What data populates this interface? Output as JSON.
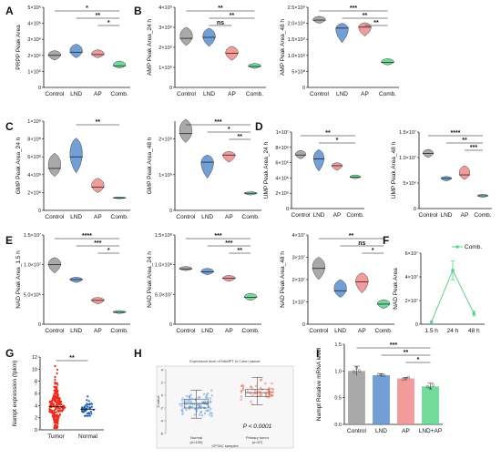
{
  "colors": {
    "control": "#9a9a9a",
    "lnd": "#5a8ed0",
    "ap": "#f08a8a",
    "comb": "#59d38a",
    "tumor": "#ef2b1b",
    "normal": "#1f5fb4",
    "h_normal": "#3a7fd1",
    "h_tumor": "#d9482a"
  },
  "groups4": [
    "Control",
    "LND",
    "AP",
    "Comb."
  ],
  "groupsI": [
    "Control",
    "LND",
    "AP",
    "LND+AP"
  ],
  "chart_data": [
    {
      "id": "A",
      "type": "violin",
      "ylabel": "PRPP Peak Area",
      "ylim": [
        0,
        5000000
      ],
      "ticks": [
        0,
        1000000,
        2000000,
        3000000,
        4000000,
        5000000
      ],
      "tick_labels": [
        "0",
        "1×10⁶",
        "2×10⁶",
        "3×10⁶",
        "4×10⁶",
        "5×10⁶"
      ],
      "categories": [
        "Control",
        "LND",
        "AP",
        "Comb."
      ],
      "values": [
        {
          "min": 1700000,
          "med": 2000000,
          "max": 2300000
        },
        {
          "min": 1850000,
          "med": 2200000,
          "max": 2700000
        },
        {
          "min": 1850000,
          "med": 2050000,
          "max": 2350000
        },
        {
          "min": 1200000,
          "med": 1350000,
          "max": 1650000
        }
      ],
      "sig": [
        {
          "from": 0,
          "to": 3,
          "label": "*"
        },
        {
          "from": 1,
          "to": 3,
          "label": "**"
        },
        {
          "from": 2,
          "to": 3,
          "label": "*"
        }
      ]
    },
    {
      "id": "B1",
      "type": "violin",
      "ylabel": "AMP Peak Area_24 h",
      "ylim": [
        0,
        4000000000
      ],
      "ticks": [
        0,
        1000000000,
        2000000000,
        3000000000,
        4000000000
      ],
      "tick_labels": [
        "0",
        "1×10⁹",
        "2×10⁹",
        "3×10⁹",
        "4×10⁹"
      ],
      "categories": [
        "Control",
        "LND",
        "AP",
        "Comb."
      ],
      "values": [
        {
          "min": 2100000000,
          "med": 2450000000,
          "max": 3000000000
        },
        {
          "min": 2050000000,
          "med": 2500000000,
          "max": 2950000000
        },
        {
          "min": 1350000000,
          "med": 1700000000,
          "max": 2050000000
        },
        {
          "min": 950000000,
          "med": 1050000000,
          "max": 1200000000
        }
      ],
      "sig": [
        {
          "from": 0,
          "to": 3,
          "label": "**"
        },
        {
          "from": 1,
          "to": 3,
          "label": "**"
        },
        {
          "from": 1,
          "to": 2,
          "label": "ns"
        }
      ]
    },
    {
      "id": "B2",
      "type": "violin",
      "ylabel": "AMP Peak Area_48 h",
      "ylim": [
        0,
        2500000000
      ],
      "ticks": [
        0,
        500000000,
        1000000000,
        1500000000,
        2000000000,
        2500000000
      ],
      "tick_labels": [
        "0",
        "5×10⁸",
        "1.0×10⁹",
        "1.5×10⁹",
        "2.0×10⁹",
        "2.5×10⁹"
      ],
      "categories": [
        "Control",
        "LND",
        "AP",
        "Comb."
      ],
      "values": [
        {
          "min": 2000000000,
          "med": 2100000000,
          "max": 2220000000
        },
        {
          "min": 1400000000,
          "med": 1850000000,
          "max": 2000000000
        },
        {
          "min": 1600000000,
          "med": 1880000000,
          "max": 2020000000
        },
        {
          "min": 700000000,
          "med": 780000000,
          "max": 900000000
        }
      ],
      "sig": [
        {
          "from": 0,
          "to": 3,
          "label": "***"
        },
        {
          "from": 1,
          "to": 3,
          "label": "**"
        },
        {
          "from": 2,
          "to": 3,
          "label": "**"
        }
      ]
    },
    {
      "id": "C1",
      "type": "violin",
      "ylabel": "GMP Peak Area_24 h",
      "ylim": [
        0,
        1000000000
      ],
      "ticks": [
        0,
        200000000,
        400000000,
        600000000,
        800000000,
        1000000000
      ],
      "tick_labels": [
        "0",
        "2×10⁸",
        "4×10⁸",
        "6×10⁸",
        "8×10⁸",
        "1×10⁹"
      ],
      "categories": [
        "Control",
        "LND",
        "AP",
        "Comb."
      ],
      "values": [
        {
          "min": 380000000,
          "med": 470000000,
          "max": 640000000
        },
        {
          "min": 420000000,
          "med": 600000000,
          "max": 810000000
        },
        {
          "min": 200000000,
          "med": 260000000,
          "max": 360000000
        },
        {
          "min": 130000000,
          "med": 140000000,
          "max": 150000000
        }
      ],
      "sig": [
        {
          "from": 1,
          "to": 3,
          "label": "**"
        }
      ]
    },
    {
      "id": "C2",
      "type": "violin",
      "ylabel": "GMP Peak Area_48 h",
      "ylim": [
        0,
        2500000000
      ],
      "ticks": [
        0,
        1000000000,
        2000000000
      ],
      "tick_labels": [
        "0",
        "1×10⁹",
        "2×10⁹"
      ],
      "categories": [
        "Control",
        "LND",
        "AP",
        "Comb."
      ],
      "values": [
        {
          "min": 1900000000,
          "med": 2150000000,
          "max": 2550000000
        },
        {
          "min": 900000000,
          "med": 1350000000,
          "max": 1550000000
        },
        {
          "min": 1350000000,
          "med": 1550000000,
          "max": 1650000000
        },
        {
          "min": 430000000,
          "med": 480000000,
          "max": 520000000
        }
      ],
      "sig": [
        {
          "from": 0,
          "to": 3,
          "label": "***"
        },
        {
          "from": 1,
          "to": 3,
          "label": "*"
        },
        {
          "from": 2,
          "to": 3,
          "label": "**"
        }
      ]
    },
    {
      "id": "D1",
      "type": "violin",
      "ylabel": "UMP Peak Area_24 h",
      "ylim": [
        0,
        10000000
      ],
      "ticks": [
        0,
        2000000,
        4000000,
        6000000,
        8000000,
        10000000
      ],
      "tick_labels": [
        "0",
        "2×10⁶",
        "4×10⁶",
        "6×10⁶",
        "8×10⁶",
        "1×10⁷"
      ],
      "categories": [
        "Control",
        "LND",
        "AP",
        "Comb."
      ],
      "values": [
        {
          "min": 6500000,
          "med": 7000000,
          "max": 7600000
        },
        {
          "min": 4900000,
          "med": 6500000,
          "max": 7700000
        },
        {
          "min": 5000000,
          "med": 5600000,
          "max": 6000000
        },
        {
          "min": 3900000,
          "med": 4100000,
          "max": 4400000
        }
      ],
      "sig": [
        {
          "from": 0,
          "to": 3,
          "label": "**"
        },
        {
          "from": 1,
          "to": 3,
          "label": "*"
        }
      ]
    },
    {
      "id": "D2",
      "type": "violin",
      "ylabel": "UMP Peak Area_48 h",
      "ylim": [
        0,
        15000000
      ],
      "ticks": [
        0,
        5000000,
        10000000,
        15000000
      ],
      "tick_labels": [
        "0",
        "5×10⁶",
        "1.0×10⁷",
        "1.5×10⁷"
      ],
      "categories": [
        "Control",
        "LND",
        "AP",
        "Comb."
      ],
      "values": [
        {
          "min": 10000000,
          "med": 10800000,
          "max": 11600000
        },
        {
          "min": 5400000,
          "med": 5900000,
          "max": 6300000
        },
        {
          "min": 5700000,
          "med": 6600000,
          "max": 8400000
        },
        {
          "min": 2200000,
          "med": 2500000,
          "max": 2800000
        }
      ],
      "sig": [
        {
          "from": 0,
          "to": 3,
          "label": "****"
        },
        {
          "from": 1,
          "to": 3,
          "label": "**"
        },
        {
          "from": 2,
          "to": 3,
          "label": "***"
        }
      ]
    },
    {
      "id": "E1",
      "type": "violin",
      "ylabel": "NAD Peak Area_1.5 h",
      "ylim": [
        0,
        15000000
      ],
      "ticks": [
        0,
        5000000,
        10000000,
        15000000
      ],
      "tick_labels": [
        "0",
        "5.0×10⁶",
        "1.0×10⁷",
        "1.5×10⁷"
      ],
      "categories": [
        "Control",
        "LND",
        "AP",
        "Comb."
      ],
      "values": [
        {
          "min": 8600000,
          "med": 10000000,
          "max": 11200000
        },
        {
          "min": 7000000,
          "med": 7500000,
          "max": 7900000
        },
        {
          "min": 3400000,
          "med": 4000000,
          "max": 4500000
        },
        {
          "min": 1800000,
          "med": 2000000,
          "max": 2300000
        }
      ],
      "sig": [
        {
          "from": 0,
          "to": 3,
          "label": "****"
        },
        {
          "from": 1,
          "to": 3,
          "label": "***"
        },
        {
          "from": 2,
          "to": 3,
          "label": "*"
        }
      ]
    },
    {
      "id": "E2",
      "type": "violin",
      "ylabel": "NAD Peak Area_24 h",
      "ylim": [
        0,
        150000000
      ],
      "ticks": [
        0,
        50000000,
        100000000,
        150000000
      ],
      "tick_labels": [
        "0",
        "5.0×10⁷",
        "1.0×10⁸",
        "1.5×10⁸"
      ],
      "categories": [
        "Control",
        "LND",
        "AP",
        "Comb."
      ],
      "values": [
        {
          "min": 90000000,
          "med": 93000000,
          "max": 97000000
        },
        {
          "min": 83000000,
          "med": 88000000,
          "max": 94000000
        },
        {
          "min": 72000000,
          "med": 77000000,
          "max": 82000000
        },
        {
          "min": 40000000,
          "med": 45000000,
          "max": 52000000
        }
      ],
      "sig": [
        {
          "from": 0,
          "to": 3,
          "label": "***"
        },
        {
          "from": 1,
          "to": 3,
          "label": "***"
        },
        {
          "from": 2,
          "to": 3,
          "label": "**"
        }
      ]
    },
    {
      "id": "E3",
      "type": "violin",
      "ylabel": "NAD Peak Area_48 h",
      "ylim": [
        0,
        40000000
      ],
      "ticks": [
        0,
        10000000,
        20000000,
        30000000,
        40000000
      ],
      "tick_labels": [
        "0",
        "1×10⁷",
        "2×10⁷",
        "3×10⁷",
        "4×10⁷"
      ],
      "categories": [
        "Control",
        "LND",
        "AP",
        "Comb."
      ],
      "values": [
        {
          "min": 20000000,
          "med": 25000000,
          "max": 30000000
        },
        {
          "min": 12000000,
          "med": 15000000,
          "max": 20000000
        },
        {
          "min": 14000000,
          "med": 19000000,
          "max": 23000000
        },
        {
          "min": 7000000,
          "med": 9000000,
          "max": 11000000
        }
      ],
      "sig": [
        {
          "from": 0,
          "to": 3,
          "label": "**"
        },
        {
          "from": 1,
          "to": 3,
          "label": "ns"
        },
        {
          "from": 2,
          "to": 3,
          "label": "*"
        }
      ]
    },
    {
      "id": "F",
      "type": "line",
      "ylabel": "NAD Peak Area",
      "ylim": [
        0,
        60000000
      ],
      "ticks": [
        0,
        20000000,
        40000000,
        60000000
      ],
      "tick_labels": [
        "0",
        "2×10⁷",
        "4×10⁷",
        "6×10⁷"
      ],
      "categories": [
        "1.5 h",
        "24 h",
        "48 h"
      ],
      "series": [
        {
          "name": "Comb.",
          "values": [
            2000000,
            45500000,
            9000000
          ],
          "err": [
            0,
            8000000,
            2000000
          ]
        }
      ]
    },
    {
      "id": "G",
      "type": "scatter",
      "ylabel": "Nampt expression (fpkm)",
      "ylim": [
        0,
        12
      ],
      "ticks": [
        0,
        2,
        4,
        6,
        8,
        10,
        12
      ],
      "tick_labels": [
        "0",
        "2",
        "4",
        "6",
        "8",
        "10",
        "12"
      ],
      "categories": [
        "Tumor",
        "Normal"
      ],
      "summary": [
        {
          "center": 3.8,
          "min": 0.3,
          "max": 10.5
        },
        {
          "center": 3.4,
          "min": 2.3,
          "max": 5.5
        }
      ],
      "sig": [
        {
          "from": 0,
          "to": 1,
          "label": "**"
        }
      ]
    },
    {
      "id": "H",
      "type": "boxplot",
      "title": "Expression level of NAMPT in Colon cancer",
      "ylabel": "Z-value",
      "ylim": [
        -6,
        4
      ],
      "ticks": [
        -6,
        -4,
        -2,
        0,
        2,
        4
      ],
      "tick_labels": [
        "-6",
        "-4",
        "-2",
        "0",
        "2",
        "4"
      ],
      "categories": [
        "Normal\n(n=100)",
        "Primary tumor\n(n=57)"
      ],
      "values": [
        {
          "q1": -2.0,
          "med": -1.3,
          "q3": -0.6,
          "min": -3.6,
          "max": 0.8
        },
        {
          "q1": -0.2,
          "med": 0.4,
          "q3": 0.9,
          "min": -1.5,
          "max": 2.8
        }
      ],
      "pvalue": "P < 0.0001",
      "footnote": "CPTAC samples"
    },
    {
      "id": "I",
      "type": "bar",
      "ylabel": "Nampt Relative mRNA level",
      "ylim": [
        0,
        1.5
      ],
      "ticks": [
        0,
        0.5,
        1.0,
        1.5
      ],
      "tick_labels": [
        "0.0",
        "0.5",
        "1.0",
        "1.5"
      ],
      "categories": [
        "Control",
        "LND",
        "AP",
        "LND+AP"
      ],
      "values": [
        1.0,
        0.92,
        0.86,
        0.71
      ],
      "err": [
        0.09,
        0.03,
        0.02,
        0.06
      ],
      "sig": [
        {
          "from": 0,
          "to": 3,
          "label": "***"
        },
        {
          "from": 1,
          "to": 3,
          "label": "**"
        },
        {
          "from": 2,
          "to": 3,
          "label": "*"
        }
      ]
    }
  ],
  "labels": {
    "A": "A",
    "B": "B",
    "C": "C",
    "D": "D",
    "E": "E",
    "F": "F",
    "G": "G",
    "H": "H",
    "I": "I"
  }
}
